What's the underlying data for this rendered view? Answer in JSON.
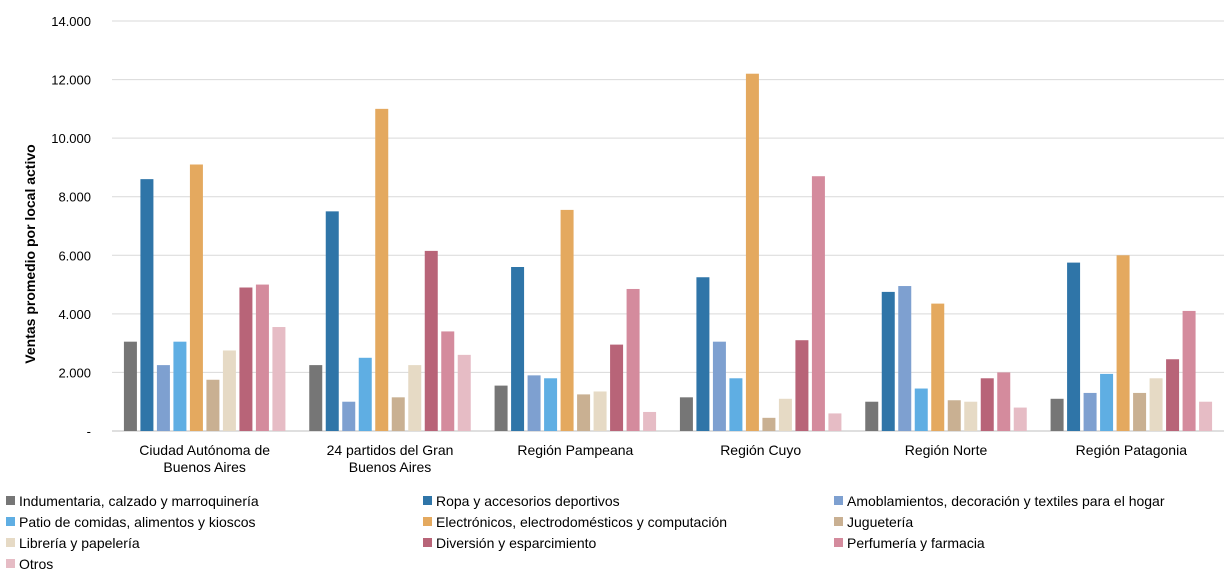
{
  "chart_data": {
    "type": "bar",
    "ylabel": "Ventas promedio por local activo",
    "ylim": [
      0,
      14000
    ],
    "yticks": [
      {
        "value": 0,
        "label": "-"
      },
      {
        "value": 2000,
        "label": "2.000"
      },
      {
        "value": 4000,
        "label": "4.000"
      },
      {
        "value": 6000,
        "label": "6.000"
      },
      {
        "value": 8000,
        "label": "8.000"
      },
      {
        "value": 10000,
        "label": "10.000"
      },
      {
        "value": 12000,
        "label": "12.000"
      },
      {
        "value": 14000,
        "label": "14.000"
      }
    ],
    "grid": true,
    "legend_position": "bottom",
    "categories": [
      [
        "Ciudad Autónoma de",
        "Buenos Aires"
      ],
      [
        "24 partidos del Gran",
        "Buenos Aires"
      ],
      [
        "Región Pampeana"
      ],
      [
        "Región Cuyo"
      ],
      [
        "Región Norte"
      ],
      [
        "Región Patagonia"
      ]
    ],
    "series": [
      {
        "name": "Indumentaria, calzado y marroquinería",
        "color": "#767676",
        "values": [
          3050,
          2250,
          1550,
          1150,
          1000,
          1100
        ]
      },
      {
        "name": "Ropa y accesorios deportivos",
        "color": "#2f75a8",
        "values": [
          8600,
          7500,
          5600,
          5250,
          4750,
          5750
        ]
      },
      {
        "name": "Amoblamientos, decoración y textiles para el hogar",
        "color": "#7ea0d0",
        "values": [
          2250,
          1000,
          1900,
          3050,
          4950,
          1300
        ]
      },
      {
        "name": "Patio de comidas, alimentos y kioscos",
        "color": "#5faee3",
        "values": [
          3050,
          2500,
          1800,
          1800,
          1450,
          1950
        ]
      },
      {
        "name": "Electrónicos, electrodomésticos y computación",
        "color": "#e4a95f",
        "values": [
          9100,
          11000,
          7550,
          12200,
          4350,
          6000
        ]
      },
      {
        "name": "Juguetería",
        "color": "#c9b092",
        "values": [
          1750,
          1150,
          1250,
          450,
          1050,
          1300
        ]
      },
      {
        "name": "Librería y papelería",
        "color": "#e6dac5",
        "values": [
          2750,
          2250,
          1350,
          1100,
          1000,
          1800
        ]
      },
      {
        "name": "Diversión y esparcimiento",
        "color": "#b86478",
        "values": [
          4900,
          6150,
          2950,
          3100,
          1800,
          2450
        ]
      },
      {
        "name": "Perfumería y farmacia",
        "color": "#d48b9d",
        "values": [
          5000,
          3400,
          4850,
          8700,
          2000,
          4100
        ]
      },
      {
        "name": "Otros",
        "color": "#e6bcc5",
        "values": [
          3550,
          2600,
          650,
          600,
          800,
          1000
        ]
      }
    ]
  }
}
